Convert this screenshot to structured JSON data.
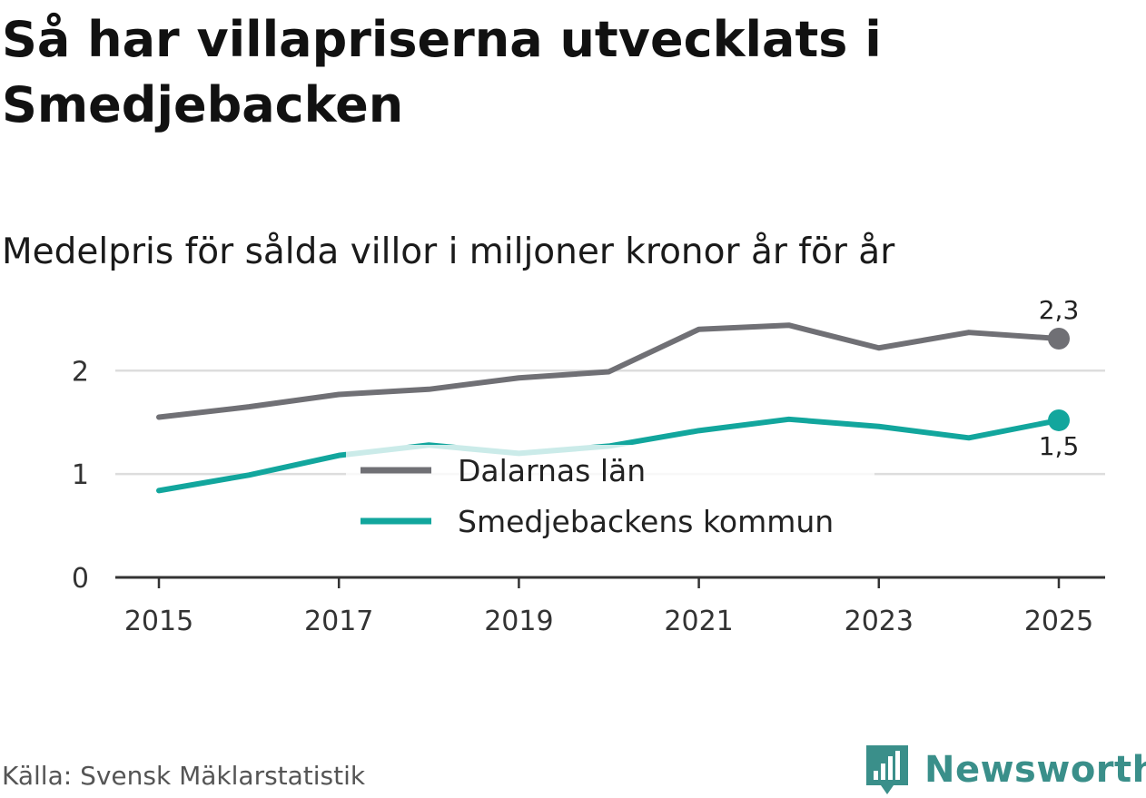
{
  "title": "Så har villapriserna utvecklats i Smedjebacken",
  "subtitle": "Medelpris för sålda villor i miljoner kronor år för år",
  "source": "Källa: Svensk Mäklarstatistik",
  "brand": {
    "name": "Newsworthy",
    "icon": "newsworthy-logo-icon",
    "color": "#3a8f8a"
  },
  "chart_data": {
    "type": "line",
    "x": [
      2015,
      2016,
      2017,
      2018,
      2019,
      2020,
      2021,
      2022,
      2023,
      2024,
      2025
    ],
    "xticks": [
      "2015",
      "2017",
      "2019",
      "2021",
      "2023",
      "2025"
    ],
    "yticks": [
      "0",
      "1",
      "2"
    ],
    "ylim": [
      0,
      2.6
    ],
    "xlim": [
      2014.5,
      2025.5
    ],
    "grid": true,
    "legend_position": "center",
    "series": [
      {
        "name": "Dalarnas län",
        "color": "#707075",
        "values": [
          1.55,
          1.65,
          1.77,
          1.82,
          1.93,
          1.99,
          2.4,
          2.44,
          2.22,
          2.37,
          2.31
        ],
        "end_label": "2,3"
      },
      {
        "name": "Smedjebackens kommun",
        "color": "#12a69d",
        "values": [
          0.84,
          0.99,
          1.18,
          1.28,
          1.2,
          1.27,
          1.42,
          1.53,
          1.46,
          1.35,
          1.52
        ],
        "end_label": "1,5"
      }
    ]
  }
}
